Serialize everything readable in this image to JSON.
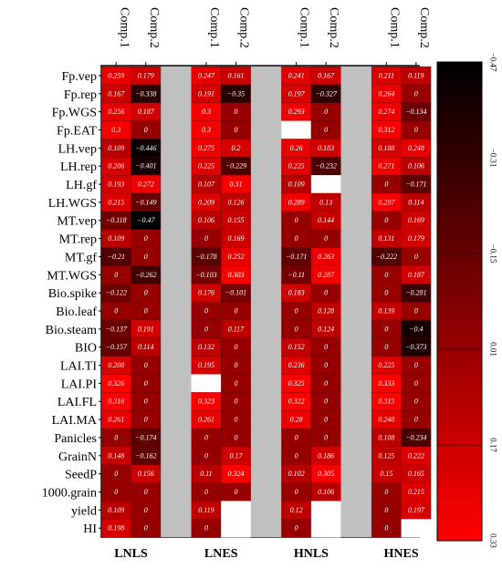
{
  "chart_data": {
    "type": "heatmap",
    "title": "",
    "rows": [
      "Fp.vep",
      "Fp.rep",
      "Fp.WGS",
      "Fp.EAT",
      "LH.vep",
      "LH.rep",
      "LH.gf",
      "LH.WGS",
      "MT.vep",
      "MT.rep",
      "MT.gf",
      "MT.WGS",
      "Bio.spike",
      "Bio.leaf",
      "Bio.steam",
      "BIO",
      "LAI.TI",
      "LAI.PI",
      "LAI.FL",
      "LAI.MA",
      "Panicles",
      "GrainN",
      "SeedP",
      "1000.grain",
      "yield",
      "HI"
    ],
    "groups": [
      {
        "name": "LNLS",
        "columns": [
          "Comp.1",
          "Comp.2"
        ],
        "values": [
          [
            0.259,
            0.179
          ],
          [
            0.167,
            -0.338
          ],
          [
            0.256,
            0.187
          ],
          [
            0.3,
            0
          ],
          [
            0.109,
            -0.446
          ],
          [
            0.206,
            -0.401
          ],
          [
            0.193,
            0.272
          ],
          [
            0.215,
            -0.149
          ],
          [
            -0.118,
            -0.47
          ],
          [
            0.109,
            0
          ],
          [
            -0.21,
            0
          ],
          [
            0,
            -0.262
          ],
          [
            -0.122,
            0
          ],
          [
            0,
            0
          ],
          [
            -0.137,
            0.191
          ],
          [
            -0.157,
            0.114
          ],
          [
            0.208,
            0
          ],
          [
            0.326,
            0
          ],
          [
            0.316,
            0
          ],
          [
            0.261,
            0
          ],
          [
            0,
            -0.174
          ],
          [
            0.148,
            -0.162
          ],
          [
            0,
            0.156
          ],
          [
            0,
            0
          ],
          [
            0.109,
            0
          ],
          [
            0.198,
            0
          ]
        ]
      },
      {
        "name": "LNES",
        "columns": [
          "Comp.1",
          "Comp.2"
        ],
        "values": [
          [
            0.247,
            0.161
          ],
          [
            0.191,
            -0.35
          ],
          [
            0.3,
            0
          ],
          [
            0.3,
            0
          ],
          [
            0.275,
            0.2
          ],
          [
            0.225,
            -0.229
          ],
          [
            0.107,
            0.31
          ],
          [
            0.209,
            0.126
          ],
          [
            0.106,
            0.155
          ],
          [
            0,
            0.169
          ],
          [
            -0.178,
            0.252
          ],
          [
            -0.103,
            0.303
          ],
          [
            0.176,
            -0.101
          ],
          [
            0,
            0
          ],
          [
            0,
            0.117
          ],
          [
            0.132,
            0
          ],
          [
            0.195,
            0
          ],
          [
            null,
            0
          ],
          [
            0.323,
            0
          ],
          [
            0.261,
            0
          ],
          [
            0,
            0
          ],
          [
            0,
            0.17
          ],
          [
            0.11,
            0.324
          ],
          [
            0,
            0
          ],
          [
            0.119,
            null
          ],
          [
            0,
            null
          ]
        ]
      },
      {
        "name": "HNLS",
        "columns": [
          "Comp.1",
          "Comp.2"
        ],
        "values": [
          [
            0.241,
            0.167
          ],
          [
            0.197,
            -0.327
          ],
          [
            0.293,
            0
          ],
          [
            null,
            0
          ],
          [
            0.26,
            0.183
          ],
          [
            0.225,
            -0.232
          ],
          [
            0.109,
            null
          ],
          [
            0.289,
            0.13
          ],
          [
            0,
            0.144
          ],
          [
            0,
            0
          ],
          [
            -0.171,
            0.263
          ],
          [
            -0.11,
            0.287
          ],
          [
            0.183,
            0
          ],
          [
            0,
            0.128
          ],
          [
            0,
            0.124
          ],
          [
            0.152,
            0
          ],
          [
            0.236,
            0
          ],
          [
            0.325,
            0
          ],
          [
            0.322,
            0
          ],
          [
            0.28,
            0
          ],
          [
            0,
            0
          ],
          [
            0,
            0.186
          ],
          [
            0.102,
            0.305
          ],
          [
            0,
            0.106
          ],
          [
            0.12,
            null
          ],
          [
            0,
            null
          ]
        ]
      },
      {
        "name": "HNES",
        "columns": [
          "Comp.1",
          "Comp.2"
        ],
        "values": [
          [
            0.211,
            0.119
          ],
          [
            0.264,
            0
          ],
          [
            0.274,
            -0.134
          ],
          [
            0.312,
            0
          ],
          [
            0.188,
            0.248
          ],
          [
            0.271,
            0.106
          ],
          [
            0,
            -0.171
          ],
          [
            0.297,
            0.114
          ],
          [
            0,
            0.169
          ],
          [
            0.131,
            0.179
          ],
          [
            -0.222,
            0
          ],
          [
            0,
            0.187
          ],
          [
            0,
            -0.281
          ],
          [
            0.139,
            0
          ],
          [
            0,
            -0.4
          ],
          [
            0,
            -0.373
          ],
          [
            0.225,
            0
          ],
          [
            0.333,
            0
          ],
          [
            0.315,
            0
          ],
          [
            0.248,
            0
          ],
          [
            0.108,
            -0.234
          ],
          [
            0.125,
            0.222
          ],
          [
            0.15,
            0.165
          ],
          [
            0,
            0.215
          ],
          [
            0,
            0.197
          ],
          [
            0,
            null
          ]
        ]
      }
    ],
    "colorbar": {
      "ticks": [
        "-0.47",
        "-0.31",
        "-0.15",
        "0.01",
        "0.17",
        "0.33"
      ],
      "min": -0.47,
      "max": 0.33
    },
    "colors": {
      "high": "#ff0000",
      "low": "#000000",
      "gap": "#c0c0c0",
      "missing": "#ffffff"
    }
  }
}
